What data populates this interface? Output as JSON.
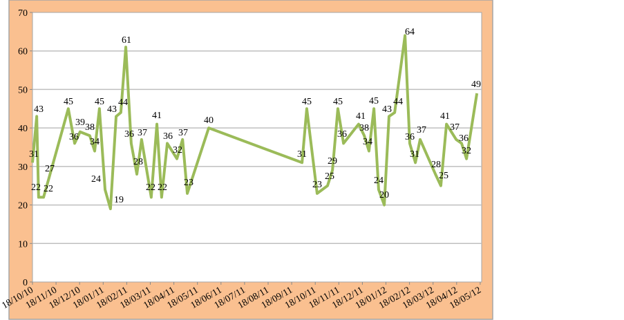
{
  "chart_data": {
    "type": "line",
    "title": "",
    "xlabel": "",
    "ylabel": "",
    "x_unit": "months since 18/10/10",
    "ylim": [
      0,
      70
    ],
    "yticks": [
      0,
      10,
      20,
      30,
      40,
      50,
      60,
      70
    ],
    "xtick_labels": [
      "18/10/10",
      "18/11/10",
      "18/12/10",
      "18/01/11",
      "18/02/11",
      "18/03/11",
      "18/04/11",
      "18/05/11",
      "18/06/11",
      "18/07/11",
      "18/08/11",
      "18/09/11",
      "18/10/11",
      "18/11/11",
      "18/12/11",
      "18/01/12",
      "18/02/12",
      "18/03/12",
      "18/04/12",
      "18/05/12"
    ],
    "grid": true,
    "legend": "none",
    "colors": {
      "line": "#9bbb59",
      "frame": "#fac090",
      "grid": "#bfbfbf"
    },
    "series": [
      {
        "name": "value",
        "x": [
          0,
          0.18,
          0.26,
          0.47,
          0.7,
          1.52,
          1.79,
          2.02,
          2.43,
          2.64,
          2.84,
          3.08,
          3.31,
          3.55,
          3.75,
          3.96,
          4.19,
          4.43,
          4.63,
          5.04,
          5.28,
          5.48,
          5.72,
          6.13,
          6.37,
          6.57,
          7.48,
          11.44,
          11.64,
          12.08,
          12.52,
          12.73,
          12.96,
          13.2,
          13.84,
          14.08,
          14.28,
          14.49,
          14.69,
          14.93,
          15.13,
          15.37,
          15.81,
          16.01,
          16.25,
          16.45,
          17.1,
          17.33,
          17.57,
          17.98,
          18.21,
          18.42,
          18.86
        ],
        "values": [
          31,
          43,
          22,
          22,
          27,
          45,
          36,
          39,
          38,
          34,
          45,
          24,
          19,
          43,
          44,
          61,
          36,
          28,
          37,
          22,
          41,
          22,
          36,
          32,
          37,
          23,
          40,
          31,
          45,
          23,
          25,
          29,
          45,
          36,
          41,
          38,
          34,
          45,
          24,
          20,
          43,
          44,
          64,
          36,
          31,
          37,
          28,
          25,
          41,
          37,
          36,
          32,
          49
        ]
      }
    ]
  }
}
